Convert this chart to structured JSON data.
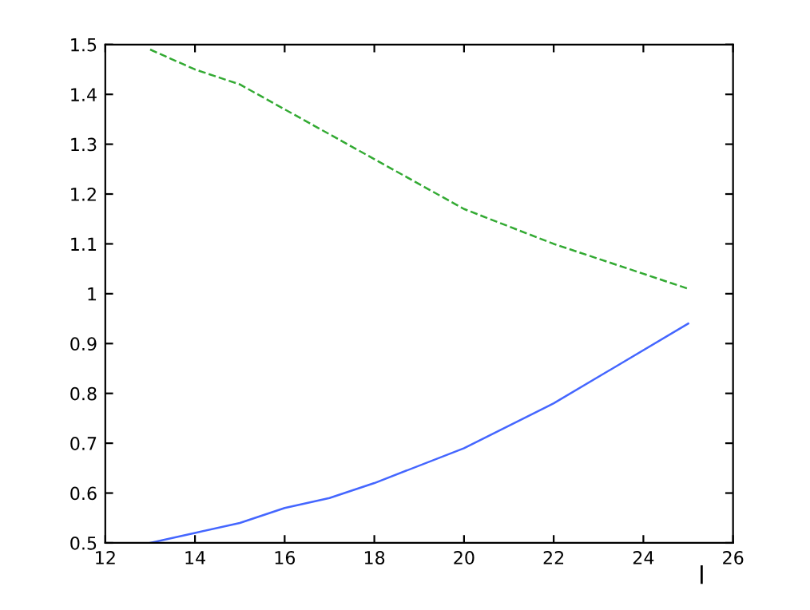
{
  "chart_data": {
    "type": "line",
    "xlabel": "l",
    "x": [
      13,
      14,
      15,
      16,
      17,
      18,
      20,
      22,
      25
    ],
    "series": [
      {
        "color": "#4466ff",
        "line_style": "solid",
        "values": [
          0.5,
          0.52,
          0.54,
          0.57,
          0.59,
          0.62,
          0.69,
          0.78,
          0.94
        ]
      },
      {
        "color": "#33aa33",
        "line_style": "dashed",
        "values": [
          1.49,
          1.45,
          1.42,
          1.37,
          1.32,
          1.27,
          1.17,
          1.1,
          1.01
        ]
      }
    ],
    "xlim": [
      12,
      26
    ],
    "xticks": [
      12,
      14,
      16,
      18,
      20,
      22,
      24,
      26
    ],
    "ylim": [
      0.5,
      1.5
    ],
    "yticks": [
      0.5,
      0.6,
      0.7,
      0.8,
      0.9,
      {
        "value": 1.0,
        "label": "1"
      },
      1.1,
      1.2,
      1.3,
      1.4,
      1.5
    ],
    "grid": false
  }
}
